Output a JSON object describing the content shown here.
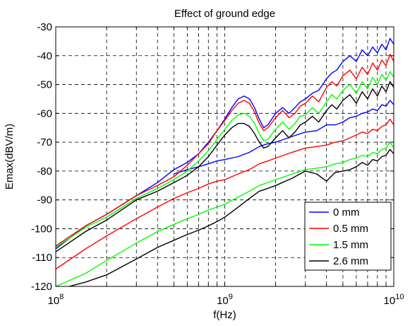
{
  "chart_data": {
    "type": "line",
    "title": "Effect of ground edge",
    "xlabel": "f(Hz)",
    "ylabel": "Emax(dBV/m)",
    "x_scale": "log",
    "xlim": [
      100000000,
      10000000000
    ],
    "ylim": [
      -120,
      -30
    ],
    "x_ticks": [
      {
        "value": 100000000,
        "base": "10",
        "exp": "8"
      },
      {
        "value": 1000000000,
        "base": "10",
        "exp": "9"
      },
      {
        "value": 10000000000,
        "base": "10",
        "exp": "10"
      }
    ],
    "y_ticks": [
      -30,
      -40,
      -50,
      -60,
      -70,
      -80,
      -90,
      -100,
      -110,
      -120
    ],
    "grid": true,
    "grid_style": "dashed",
    "legend_position": "bottom-right",
    "series": [
      {
        "name": "0 mm",
        "color": "#0000ff",
        "traces": [
          {
            "x": [
              100000000,
              150000000,
              200000000,
              300000000,
              400000000,
              500000000,
              600000000,
              700000000,
              800000000,
              900000000,
              1000000000,
              1100000000,
              1200000000,
              1300000000,
              1400000000,
              1500000000,
              1600000000,
              1700000000,
              1800000000,
              2000000000,
              2200000000,
              2400000000,
              2600000000,
              2800000000,
              3000000000,
              3300000000,
              3600000000,
              4000000000,
              4300000000,
              4600000000,
              5000000000,
              5500000000,
              6000000000,
              6500000000,
              7000000000,
              7500000000,
              8000000000,
              8500000000,
              9000000000,
              9500000000,
              10000000000
            ],
            "y": [
              -107,
              -99,
              -95,
              -88.5,
              -84,
              -79.5,
              -77,
              -74,
              -70,
              -66,
              -62,
              -58,
              -55,
              -54,
              -55,
              -58,
              -62,
              -65,
              -64,
              -60,
              -58,
              -60,
              -58,
              -56,
              -55,
              -53,
              -52,
              -48,
              -46,
              -45,
              -42,
              -40,
              -42,
              -38,
              -40,
              -37,
              -39,
              -36,
              -38,
              -34,
              -36
            ]
          },
          {
            "x": [
              500000000,
              600000000,
              700000000,
              800000000,
              900000000,
              1000000000,
              1200000000,
              1400000000,
              1600000000,
              1800000000,
              2000000000,
              2500000000,
              3000000000,
              3500000000,
              4000000000,
              4500000000,
              5000000000,
              5500000000,
              6000000000,
              6500000000,
              7000000000,
              7500000000,
              8000000000,
              8500000000,
              9000000000,
              9500000000,
              10000000000
            ],
            "y": [
              -81,
              -79.5,
              -78.5,
              -77.5,
              -76.5,
              -76,
              -75,
              -73.5,
              -71.5,
              -70.5,
              -70,
              -68,
              -66.5,
              -66,
              -64,
              -64,
              -63,
              -61.5,
              -61,
              -60,
              -59.5,
              -58.5,
              -59,
              -57,
              -57.5,
              -55.5,
              -57
            ]
          }
        ]
      },
      {
        "name": "0.5 mm",
        "color": "#ff0000",
        "traces": [
          {
            "x": [
              100000000,
              150000000,
              200000000,
              300000000,
              400000000,
              500000000,
              600000000,
              700000000,
              800000000,
              900000000,
              1000000000,
              1100000000,
              1200000000,
              1300000000,
              1400000000,
              1500000000,
              1600000000,
              1700000000,
              1800000000,
              2000000000,
              2200000000,
              2400000000,
              2600000000,
              2800000000,
              3000000000,
              3300000000,
              3600000000,
              4000000000,
              4300000000,
              4600000000,
              5000000000,
              5500000000,
              6000000000,
              6500000000,
              7000000000,
              7500000000,
              8000000000,
              8500000000,
              9000000000,
              9500000000,
              10000000000
            ],
            "y": [
              -106,
              -99,
              -95,
              -88.5,
              -85,
              -82,
              -78,
              -74,
              -70.5,
              -66,
              -62.5,
              -59,
              -56.5,
              -55.5,
              -56.5,
              -59.5,
              -63.5,
              -66,
              -65,
              -61.5,
              -59,
              -61.5,
              -60,
              -57.5,
              -56.5,
              -54,
              -56,
              -51,
              -49,
              -50.5,
              -47,
              -45,
              -48,
              -44,
              -46.5,
              -42.5,
              -45,
              -41.5,
              -43.5,
              -39.5,
              -42
            ]
          },
          {
            "x": [
              100000000,
              150000000,
              200000000,
              300000000,
              400000000,
              500000000,
              600000000,
              700000000,
              800000000,
              900000000,
              1000000000,
              1200000000,
              1400000000,
              1600000000,
              1800000000,
              2000000000,
              2500000000,
              3000000000,
              3500000000,
              4000000000,
              4500000000,
              5000000000,
              5500000000,
              6000000000,
              6500000000,
              7000000000,
              7500000000,
              8000000000,
              8500000000,
              9000000000,
              9500000000,
              10000000000
            ],
            "y": [
              -114,
              -107,
              -102.5,
              -96.5,
              -92.5,
              -89.5,
              -87.5,
              -86,
              -84.5,
              -83.5,
              -83,
              -81,
              -79.5,
              -77.5,
              -76.5,
              -75.5,
              -73.5,
              -72,
              -71.5,
              -71,
              -70,
              -69.5,
              -68.5,
              -67.5,
              -66.5,
              -67,
              -65.5,
              -66,
              -64.5,
              -64,
              -62,
              -64
            ]
          }
        ]
      },
      {
        "name": "1.5 mm",
        "color": "#00ff00",
        "traces": [
          {
            "x": [
              100000000,
              150000000,
              200000000,
              300000000,
              400000000,
              500000000,
              600000000,
              700000000,
              800000000,
              900000000,
              1000000000,
              1100000000,
              1200000000,
              1300000000,
              1400000000,
              1500000000,
              1600000000,
              1700000000,
              1800000000,
              2000000000,
              2200000000,
              2400000000,
              2600000000,
              2800000000,
              3000000000,
              3300000000,
              3600000000,
              4000000000,
              4300000000,
              4600000000,
              5000000000,
              5500000000,
              6000000000,
              6500000000,
              7000000000,
              7500000000,
              8000000000,
              8500000000,
              9000000000,
              9500000000,
              10000000000
            ],
            "y": [
              -106.5,
              -99.5,
              -96,
              -89.5,
              -86,
              -83,
              -80,
              -76.5,
              -73,
              -69,
              -65.5,
              -62.5,
              -60.5,
              -60,
              -61,
              -63.5,
              -67,
              -69.5,
              -69,
              -65.5,
              -63,
              -65.5,
              -63.5,
              -61,
              -60.5,
              -58,
              -60,
              -56,
              -53.5,
              -55,
              -52,
              -50,
              -53,
              -49,
              -51.5,
              -47.5,
              -50,
              -46.5,
              -48.5,
              -45.5,
              -47.5
            ]
          },
          {
            "x": [
              100000000,
              150000000,
              200000000,
              300000000,
              400000000,
              500000000,
              600000000,
              700000000,
              800000000,
              900000000,
              1000000000,
              1200000000,
              1400000000,
              1600000000,
              1800000000,
              2000000000,
              2500000000,
              3000000000,
              3500000000,
              4000000000,
              4500000000,
              5000000000,
              5500000000,
              6000000000,
              6500000000,
              7000000000,
              7500000000,
              8000000000,
              8500000000,
              9000000000,
              9500000000,
              10000000000
            ],
            "y": [
              -120,
              -115.5,
              -111,
              -105,
              -101,
              -98.5,
              -96.5,
              -95,
              -93.5,
              -92.5,
              -91.5,
              -89,
              -87,
              -85,
              -84,
              -83,
              -81,
              -79.5,
              -79,
              -78.5,
              -77.5,
              -77,
              -76,
              -75.5,
              -74.5,
              -75,
              -73.5,
              -74,
              -72.5,
              -72,
              -70,
              -72
            ]
          }
        ]
      },
      {
        "name": "2.6 mm",
        "color": "#000000",
        "traces": [
          {
            "x": [
              100000000,
              150000000,
              200000000,
              300000000,
              400000000,
              500000000,
              600000000,
              700000000,
              800000000,
              900000000,
              1000000000,
              1100000000,
              1200000000,
              1300000000,
              1400000000,
              1500000000,
              1600000000,
              1700000000,
              1800000000,
              2000000000,
              2200000000,
              2400000000,
              2600000000,
              2800000000,
              3000000000,
              3300000000,
              3600000000,
              4000000000,
              4300000000,
              4600000000,
              5000000000,
              5500000000,
              6000000000,
              6500000000,
              7000000000,
              7500000000,
              8000000000,
              8500000000,
              9000000000,
              9500000000,
              10000000000
            ],
            "y": [
              -108,
              -101,
              -97,
              -90,
              -87,
              -84,
              -81.5,
              -78.5,
              -75,
              -71,
              -67.5,
              -65,
              -63.5,
              -63.5,
              -64.5,
              -67,
              -70,
              -72,
              -71.5,
              -68.5,
              -66,
              -68.5,
              -66.5,
              -64,
              -63,
              -61,
              -63,
              -59,
              -57,
              -58.5,
              -55.5,
              -53.5,
              -56.5,
              -52.5,
              -55,
              -51.5,
              -54,
              -50.5,
              -52.5,
              -49,
              -51
            ]
          },
          {
            "x": [
              120000000,
              150000000,
              200000000,
              300000000,
              400000000,
              500000000,
              600000000,
              700000000,
              800000000,
              900000000,
              1000000000,
              1200000000,
              1400000000,
              1600000000,
              1800000000,
              2000000000,
              2500000000,
              3000000000,
              3500000000,
              4000000000,
              4500000000,
              5000000000,
              5500000000,
              6000000000,
              6500000000,
              7000000000,
              7500000000,
              8000000000,
              8500000000,
              9000000000,
              9500000000,
              10000000000
            ],
            "y": [
              -120,
              -118.5,
              -116,
              -110.5,
              -106.5,
              -104,
              -102,
              -100.5,
              -99,
              -97.5,
              -96,
              -92.5,
              -89.5,
              -87,
              -86,
              -85,
              -82.5,
              -80,
              -81,
              -83.5,
              -80.5,
              -80,
              -79.5,
              -78.5,
              -77,
              -78,
              -76,
              -76.5,
              -75,
              -74.5,
              -72.5,
              -74
            ]
          }
        ]
      }
    ]
  }
}
